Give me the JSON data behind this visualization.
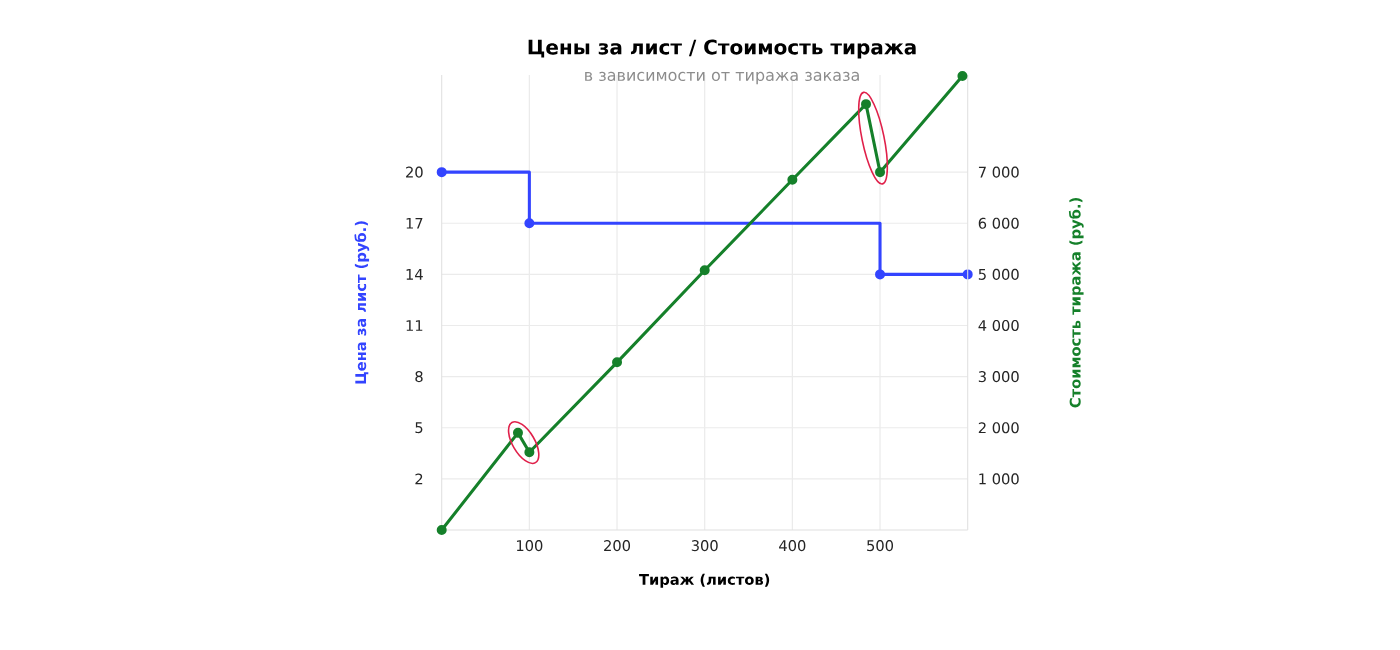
{
  "chart_data": {
    "type": "line",
    "title": "Цены за лист / Стоимость тиража",
    "subtitle": "в зависимости от тиража заказа",
    "xlabel": "Тираж **(листов)**",
    "ylabel": "Цена за лист  (руб.)",
    "y2label": "Стоимость тиража  (руб.)",
    "xlim": [
      0,
      600
    ],
    "xticks": [
      100,
      200,
      300,
      400,
      500
    ],
    "ylim": [
      -1,
      25.7
    ],
    "yticks": [
      2,
      5,
      8,
      11,
      14,
      17,
      20
    ],
    "y2lim": [
      0,
      8900
    ],
    "y2ticks": [
      {
        "value": 1000,
        "label": "1 000"
      },
      {
        "value": 2000,
        "label": "2 000"
      },
      {
        "value": 3000,
        "label": "3 000"
      },
      {
        "value": 4000,
        "label": "4 000"
      },
      {
        "value": 5000,
        "label": "5 000"
      },
      {
        "value": 6000,
        "label": "6 000"
      },
      {
        "value": 7000,
        "label": "7 000"
      }
    ],
    "grid": true,
    "marker": "circle",
    "series": [
      {
        "type": "step",
        "color": "#3344ff",
        "x": [
          0,
          100,
          500,
          600
        ],
        "values": [
          20,
          17,
          14,
          14
        ]
      },
      {
        "type": "line",
        "axis": "y2",
        "color": "#15802a",
        "x": [
          0,
          87,
          100,
          200,
          300,
          400,
          484,
          500,
          594
        ],
        "values": [
          0,
          1900,
          1520,
          3280,
          5080,
          6850,
          8330,
          7000,
          8880
        ]
      }
    ]
  }
}
